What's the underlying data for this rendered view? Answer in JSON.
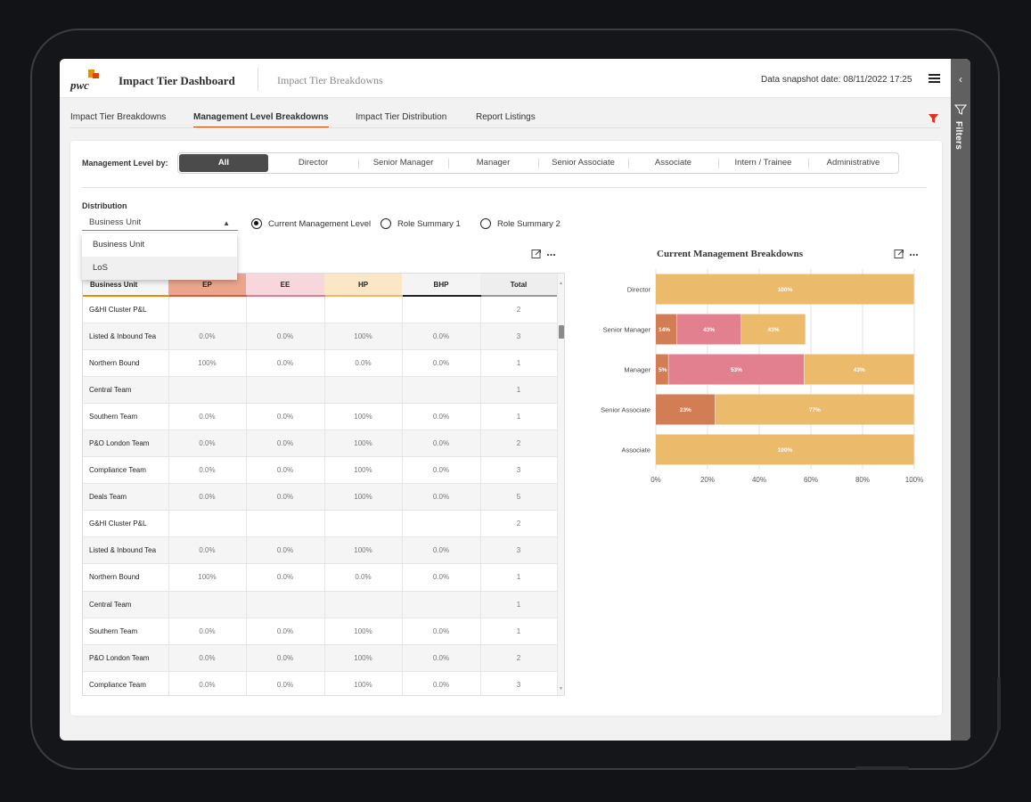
{
  "header": {
    "logo_text": "pwc",
    "app_title": "Impact Tier Dashboard",
    "subtitle": "Impact Tier Breakdowns",
    "snapshot": "Data snapshot date: 08/11/2022 17:25"
  },
  "filters_panel": {
    "label": "Filters"
  },
  "tabs": [
    {
      "label": "Impact Tier Breakdowns"
    },
    {
      "label": "Management Level Breakdowns"
    },
    {
      "label": "Impact Tier Distribution"
    },
    {
      "label": "Report Listings"
    }
  ],
  "management_level": {
    "label": "Management Level by:",
    "options": [
      "All",
      "Director",
      "Senior Manager",
      "Manager",
      "Senior Associate",
      "Associate",
      "Intern / Trainee",
      "Administrative"
    ],
    "selected": "All"
  },
  "distribution": {
    "label": "Distribution",
    "selected": "Business Unit",
    "options": [
      "Business Unit",
      "LoS"
    ]
  },
  "radios": [
    {
      "label": "Current Management Level",
      "checked": true
    },
    {
      "label": "Role Summary 1",
      "checked": false
    },
    {
      "label": "Role Summary 2",
      "checked": false
    }
  ],
  "table": {
    "headers": [
      "Business Unit",
      "EP",
      "EE",
      "HP",
      "BHP",
      "Total"
    ],
    "rows": [
      [
        "G&HI Cluster P&L",
        "",
        "",
        "",
        "",
        "2"
      ],
      [
        "Listed & Inbound Tea",
        "0.0%",
        "0.0%",
        "100%",
        "0.0%",
        "3"
      ],
      [
        "Northern Bound",
        "100%",
        "0.0%",
        "0.0%",
        "0.0%",
        "1"
      ],
      [
        "Central Team",
        "",
        "",
        "",
        "",
        "1"
      ],
      [
        "Southern Team",
        "0.0%",
        "0.0%",
        "100%",
        "0.0%",
        "1"
      ],
      [
        "P&O London Team",
        "0.0%",
        "0.0%",
        "100%",
        "0.0%",
        "2"
      ],
      [
        "Compliance Team",
        "0.0%",
        "0.0%",
        "100%",
        "0.0%",
        "3"
      ],
      [
        "Deals Team",
        "0.0%",
        "0.0%",
        "100%",
        "0.0%",
        "5"
      ],
      [
        "G&HI Cluster P&L",
        "",
        "",
        "",
        "",
        "2"
      ],
      [
        "Listed & Inbound Tea",
        "0.0%",
        "0.0%",
        "100%",
        "0.0%",
        "3"
      ],
      [
        "Northern Bound",
        "100%",
        "0.0%",
        "0.0%",
        "0.0%",
        "1"
      ],
      [
        "Central Team",
        "",
        "",
        "",
        "",
        "1"
      ],
      [
        "Southern Team",
        "0.0%",
        "0.0%",
        "100%",
        "0.0%",
        "1"
      ],
      [
        "P&O London Team",
        "0.0%",
        "0.0%",
        "100%",
        "0.0%",
        "2"
      ],
      [
        "Compliance Team",
        "0.0%",
        "0.0%",
        "100%",
        "0.0%",
        "3"
      ]
    ]
  },
  "colors": {
    "accent": "#d04a02",
    "ep": "#d37d55",
    "ee": "#e3808f",
    "hp": "#ebbb6b"
  },
  "chart_data": {
    "type": "bar",
    "orientation": "horizontal",
    "stacked": true,
    "title": "Current Management Breakdowns",
    "categories": [
      "Director",
      "Senior Manager",
      "Manager",
      "Senior Associate",
      "Associate"
    ],
    "series": [
      {
        "values": [
          0,
          14,
          5,
          23,
          0
        ],
        "color": "#d37d55"
      },
      {
        "values": [
          0,
          43,
          53,
          0,
          0
        ],
        "color": "#e3808f"
      },
      {
        "values": [
          100,
          43,
          43,
          77,
          100
        ],
        "color": "#ebbb6b"
      }
    ],
    "bar_lengths": [
      100,
      58,
      100,
      100,
      100
    ],
    "xlim": [
      0,
      100
    ],
    "xticks": [
      "0%",
      "20%",
      "40%",
      "60%",
      "80%",
      "100%"
    ],
    "grid": true,
    "legend": "none"
  }
}
